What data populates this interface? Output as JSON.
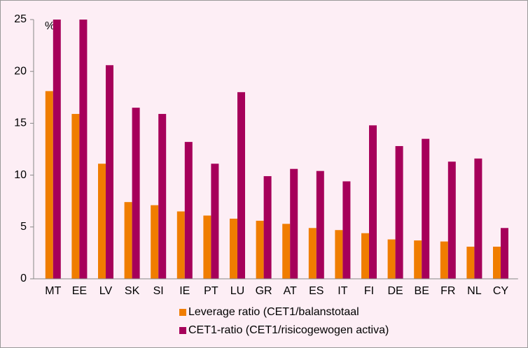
{
  "chart_data": {
    "type": "bar",
    "annotation": "%",
    "categories": [
      "MT",
      "EE",
      "LV",
      "SK",
      "SI",
      "IE",
      "PT",
      "LU",
      "GR",
      "AT",
      "ES",
      "IT",
      "FI",
      "DE",
      "BE",
      "FR",
      "NL",
      "CY"
    ],
    "series": [
      {
        "name": "Leverage ratio (CET1/balanstotaal",
        "color": "#f07d00",
        "values": [
          18.1,
          15.9,
          11.1,
          7.4,
          7.1,
          6.5,
          6.1,
          5.8,
          5.6,
          5.3,
          4.9,
          4.7,
          4.4,
          3.8,
          3.7,
          3.6,
          3.1,
          3.1
        ]
      },
      {
        "name": "CET1-ratio (CET1/risicogewogen activa)",
        "color": "#a6005a",
        "values": [
          25,
          25,
          20.6,
          16.5,
          15.9,
          13.2,
          11.1,
          18.0,
          9.9,
          10.6,
          10.4,
          9.4,
          14.8,
          12.8,
          13.5,
          11.3,
          11.6,
          4.9
        ]
      }
    ],
    "ylim": [
      0,
      25
    ],
    "yticks": [
      0,
      5,
      10,
      15,
      20,
      25
    ],
    "grid": false
  }
}
